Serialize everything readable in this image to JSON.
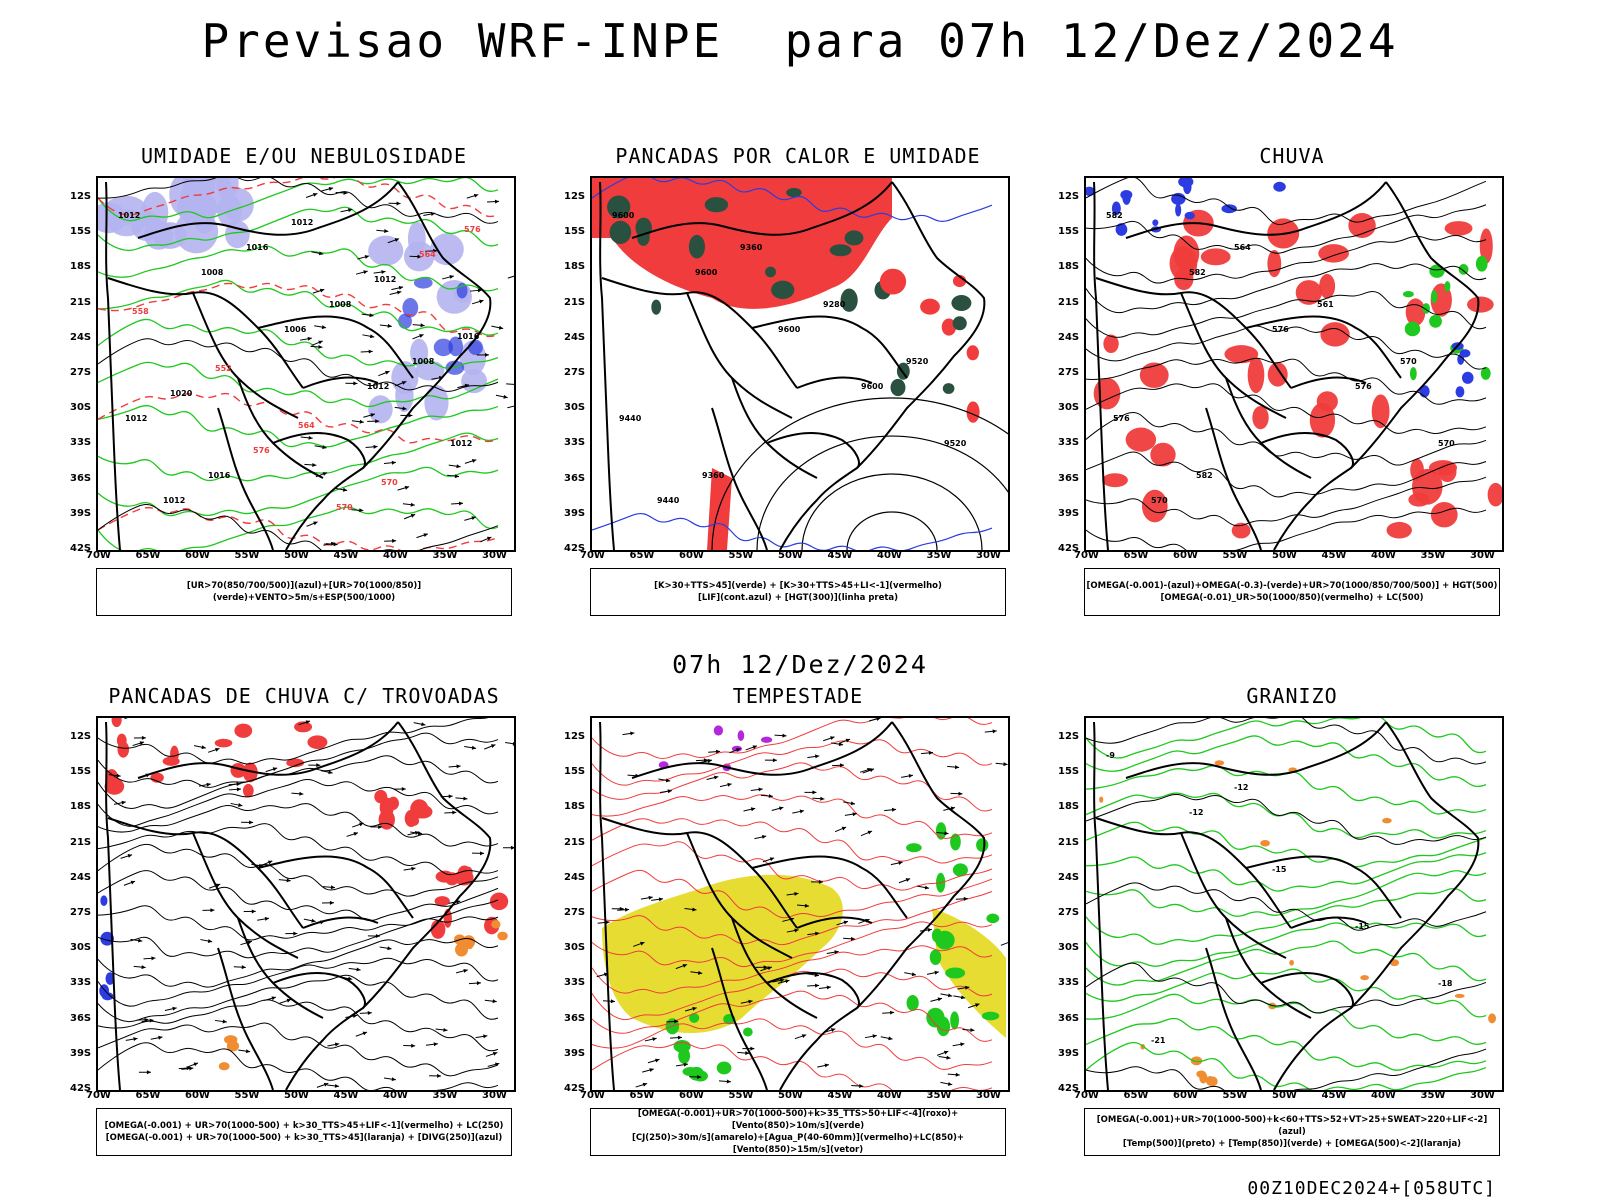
{
  "title": "Previsao WRF-INPE  para 07h 12/Dez/2024",
  "subtitle": "07h 12/Dez/2024",
  "footer": "00Z10DEC2024+[058UTC]",
  "lat_ticks": [
    "12S",
    "15S",
    "18S",
    "21S",
    "24S",
    "27S",
    "30S",
    "33S",
    "36S",
    "39S",
    "42S"
  ],
  "lon_ticks": [
    "70W",
    "65W",
    "60W",
    "55W",
    "50W",
    "45W",
    "40W",
    "35W",
    "30W"
  ],
  "colors": {
    "red": "#f03c3c",
    "green": "#1ec81e",
    "blue": "#2c3ce0",
    "lavender": "#b4b4f0",
    "darkgreen": "#2a5040",
    "yellow": "#e6dc32",
    "orange": "#f08c32",
    "purple": "#b428dc",
    "contour": "#000000"
  },
  "panels": [
    {
      "title": "UMIDADE E/OU NEBULOSIDADE",
      "legend": [
        "[UR>70(850/700/500)](azul)+[UR>70(1000/850)](verde)+VENTO>5m/s+ESP(500/1000)"
      ],
      "labels": [
        "1012",
        "1008",
        "1006",
        "1012",
        "1012",
        "1012",
        "1016",
        "1008",
        "1008",
        "1012",
        "1016",
        "1012",
        "1012",
        "1016",
        "1020",
        "576",
        "570",
        "564",
        "558",
        "552",
        "564",
        "570",
        "576"
      ]
    },
    {
      "title": "PANCADAS POR CALOR E UMIDADE",
      "legend": [
        "[K>30+TTS>45](verde) + [K>30+TTS>45+LI<-1](vermelho)",
        "[LIF](cont.azul) + [HGT(300)](linha preta)"
      ],
      "labels": [
        "9600",
        "9600",
        "9600",
        "9600",
        "9520",
        "9440",
        "9360",
        "9280",
        "9520",
        "9440",
        "9360"
      ]
    },
    {
      "title": "CHUVA",
      "legend": [
        "[OMEGA(-0.001)-(azul)+OMEGA(-0.3)-(verde)+UR>70(1000/850/700/500)] + HGT(500)",
        "[OMEGA(-0.01)_UR>50(1000/850)(vermelho) + LC(500)"
      ],
      "labels": [
        "582",
        "582",
        "576",
        "576",
        "570",
        "570",
        "564",
        "561",
        "570",
        "576",
        "582"
      ]
    },
    {
      "title": "PANCADAS DE CHUVA C/ TROVOADAS",
      "legend": [
        "[OMEGA(-0.001) + UR>70(1000-500) + k>30_TTS>45+LIF<-1](vermelho) + LC(250)",
        "[OMEGA(-0.001) + UR>70(1000-500) + k>30_TTS>45](laranja) + [DIVG(250)](azul)"
      ],
      "labels": []
    },
    {
      "title": "TEMPESTADE",
      "legend": [
        "[OMEGA(-0.001)+UR>70(1000-500)+k>35_TTS>50+LIF<-4](roxo)+[Vento(850)>10m/s](verde)",
        "[CJ(250)>30m/s](amarelo)+[Agua_P(40-60mm)](vermelho)+LC(850)+[Vento(850)>15m/s](vetor)"
      ],
      "labels": []
    },
    {
      "title": "GRANIZO",
      "legend": [
        "[OMEGA(-0.001)+UR>70(1000-500)+k<60+TTS>52+VT>25+SWEAT>220+LIF<-2](azul)",
        "[Temp(500)](preto) + [Temp(850)](verde) + [OMEGA(500)<-2](laranja)"
      ],
      "labels": [
        "-9",
        "-12",
        "-15",
        "-15",
        "-18",
        "-21",
        "-12"
      ]
    }
  ]
}
